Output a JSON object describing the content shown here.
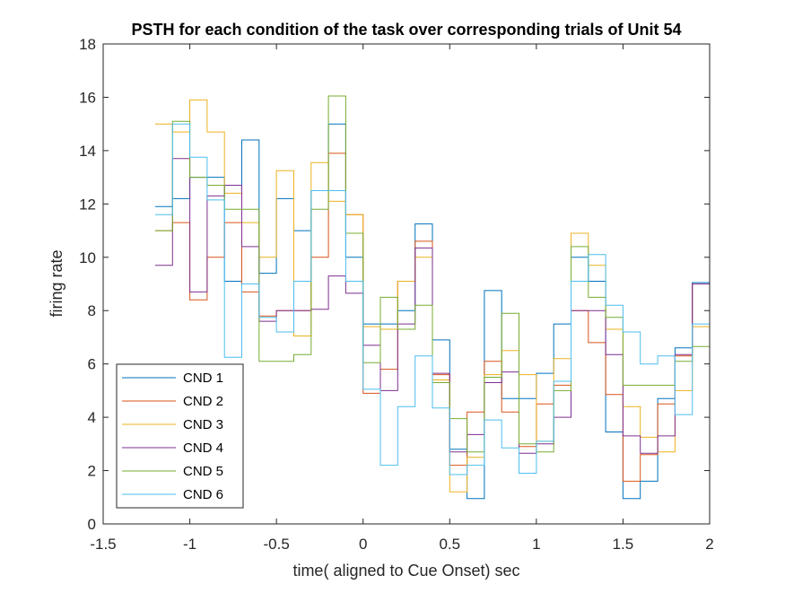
{
  "chart_data": {
    "type": "line",
    "style": "step",
    "title": "PSTH for each condition of the task over corresponding trials of Unit 54",
    "xlabel": "time( aligned to Cue Onset) sec",
    "ylabel": "firing rate",
    "xlim": [
      -1.5,
      2
    ],
    "ylim": [
      0,
      18
    ],
    "xticks": [
      -1.5,
      -1,
      -0.5,
      0,
      0.5,
      1,
      1.5,
      2
    ],
    "xtick_labels": [
      "-1.5",
      "-1",
      "-0.5",
      "0",
      "0.5",
      "1",
      "1.5",
      "2"
    ],
    "yticks": [
      0,
      2,
      4,
      6,
      8,
      10,
      12,
      14,
      16,
      18
    ],
    "ytick_labels": [
      "0",
      "2",
      "4",
      "6",
      "8",
      "10",
      "12",
      "14",
      "16",
      "18"
    ],
    "grid": false,
    "legend_position": "bottom-left",
    "x": [
      -1.2,
      -1.1,
      -1.0,
      -0.9,
      -0.8,
      -0.7,
      -0.6,
      -0.5,
      -0.4,
      -0.3,
      -0.2,
      -0.1,
      0.0,
      0.1,
      0.2,
      0.3,
      0.4,
      0.5,
      0.6,
      0.7,
      0.8,
      0.9,
      1.0,
      1.1,
      1.2,
      1.3,
      1.4,
      1.5,
      1.6,
      1.7,
      1.8,
      1.9,
      2.0
    ],
    "series": [
      {
        "name": "CND 1",
        "color": "#0072BD",
        "values": [
          11.9,
          12.2,
          13.0,
          13.0,
          9.1,
          14.4,
          9.4,
          12.2,
          11.0,
          12.5,
          15.0,
          10.0,
          7.5,
          7.5,
          8.0,
          11.25,
          6.9,
          2.8,
          0.95,
          8.75,
          4.7,
          4.7,
          5.65,
          7.5,
          10.0,
          9.1,
          3.45,
          0.95,
          1.6,
          4.7,
          6.6,
          9.05,
          9.05
        ]
      },
      {
        "name": "CND 2",
        "color": "#D95319",
        "values": [
          11.0,
          11.3,
          8.4,
          10.0,
          11.3,
          8.7,
          7.8,
          8.0,
          8.0,
          10.0,
          13.9,
          11.6,
          4.9,
          5.8,
          9.1,
          10.6,
          5.6,
          2.2,
          4.2,
          6.1,
          4.2,
          2.9,
          4.5,
          5.2,
          8.0,
          6.8,
          4.85,
          1.6,
          2.6,
          4.5,
          6.3,
          9.0,
          9.0
        ]
      },
      {
        "name": "CND 3",
        "color": "#EDB120",
        "values": [
          15.0,
          14.7,
          15.9,
          14.7,
          12.4,
          11.3,
          10.0,
          13.25,
          7.05,
          13.55,
          12.1,
          11.6,
          7.4,
          7.3,
          9.1,
          10.0,
          5.4,
          1.2,
          2.5,
          5.6,
          6.5,
          5.6,
          3.1,
          6.2,
          10.9,
          9.7,
          7.3,
          4.4,
          3.25,
          2.7,
          5.0,
          7.4,
          7.4
        ]
      },
      {
        "name": "CND 4",
        "color": "#7E2F8E",
        "values": [
          9.7,
          13.7,
          8.7,
          12.3,
          12.7,
          10.4,
          7.6,
          8.0,
          8.0,
          8.05,
          9.3,
          8.65,
          6.7,
          5.0,
          7.5,
          10.35,
          5.65,
          2.7,
          3.35,
          5.3,
          5.7,
          2.65,
          3.0,
          4.0,
          8.0,
          8.0,
          6.35,
          3.3,
          2.65,
          3.3,
          6.35,
          9.0,
          9.0
        ]
      },
      {
        "name": "CND 5",
        "color": "#77AC30",
        "values": [
          11.0,
          15.1,
          13.0,
          12.7,
          11.8,
          11.8,
          6.1,
          6.1,
          6.35,
          11.8,
          16.05,
          10.9,
          6.05,
          8.5,
          7.3,
          8.2,
          5.3,
          3.95,
          2.7,
          5.5,
          7.9,
          3.0,
          2.7,
          5.0,
          10.4,
          8.5,
          7.75,
          5.2,
          5.2,
          5.2,
          6.1,
          6.65,
          6.65
        ]
      },
      {
        "name": "CND 6",
        "color": "#4DBEEE",
        "values": [
          11.6,
          15.0,
          13.75,
          12.15,
          6.25,
          9.0,
          7.75,
          7.2,
          9.1,
          12.5,
          12.5,
          9.1,
          5.05,
          2.2,
          4.4,
          6.3,
          4.35,
          1.85,
          2.2,
          3.9,
          2.85,
          1.9,
          3.1,
          5.35,
          9.1,
          10.1,
          8.2,
          7.2,
          6.0,
          6.3,
          4.1,
          7.5,
          7.5
        ]
      }
    ]
  }
}
